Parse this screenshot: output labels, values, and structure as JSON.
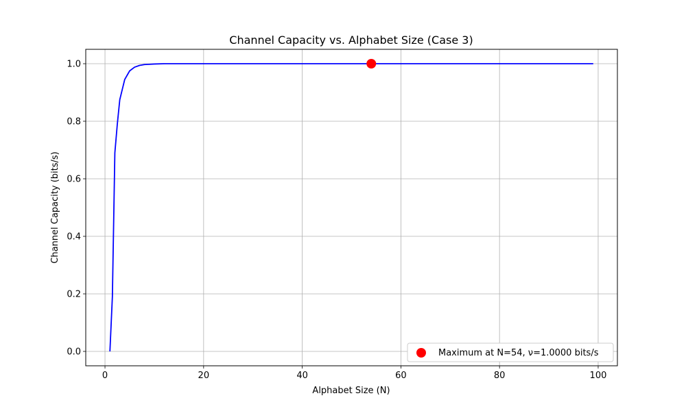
{
  "chart_data": {
    "type": "line",
    "title": "Channel Capacity vs. Alphabet Size (Case 3)",
    "xlabel": "Alphabet Size (N)",
    "ylabel": "Channel Capacity (bits/s)",
    "xlim": [
      -3.9,
      103.9
    ],
    "ylim": [
      -0.05,
      1.05
    ],
    "xticks": [
      0,
      20,
      40,
      60,
      80,
      100
    ],
    "yticks": [
      0.0,
      0.2,
      0.4,
      0.6,
      0.8,
      1.0
    ],
    "grid": true,
    "legend_position": "lower-right",
    "series": [
      {
        "type": "line",
        "color": "#0000ff",
        "x": [
          1,
          1.5,
          2,
          2.5,
          3,
          4,
          5,
          6,
          7,
          8,
          9,
          10,
          12,
          15,
          20,
          30,
          40,
          54,
          60,
          70,
          80,
          90,
          99
        ],
        "y": [
          0.0,
          0.19,
          0.69,
          0.79,
          0.875,
          0.945,
          0.975,
          0.988,
          0.994,
          0.997,
          0.998,
          0.999,
          1.0,
          1.0,
          1.0,
          1.0,
          1.0,
          1.0,
          1.0,
          1.0,
          1.0,
          1.0,
          1.0
        ]
      },
      {
        "type": "scatter",
        "name": "Maximum at N=54, ν=1.0000 bits/s",
        "color": "#ff0000",
        "x": [
          54
        ],
        "y": [
          1.0
        ]
      }
    ]
  }
}
